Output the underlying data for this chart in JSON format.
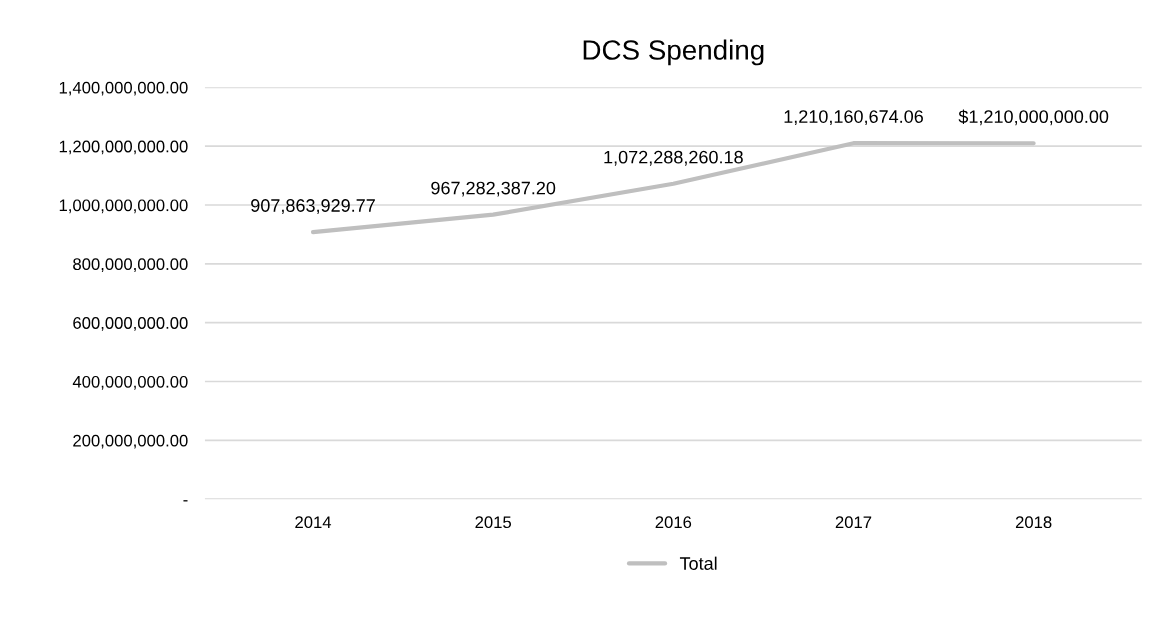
{
  "chart_data": {
    "type": "line",
    "title": "DCS Spending",
    "categories": [
      "2014",
      "2015",
      "2016",
      "2017",
      "2018"
    ],
    "series": [
      {
        "name": "Total",
        "color": "#bfbfbf",
        "values": [
          907863929.77,
          967282387.2,
          1072288260.18,
          1210160674.06,
          1210000000.0
        ],
        "value_labels": [
          "907,863,929.77",
          "967,282,387.20",
          "1,072,288,260.18",
          "1,210,160,674.06",
          "$1,210,000,000.00"
        ]
      }
    ],
    "ylim": [
      0,
      1400000000
    ],
    "yticks": [
      {
        "value": 0,
        "label": "-"
      },
      {
        "value": 200000000,
        "label": "200,000,000.00"
      },
      {
        "value": 400000000,
        "label": "400,000,000.00"
      },
      {
        "value": 600000000,
        "label": "600,000,000.00"
      },
      {
        "value": 800000000,
        "label": "800,000,000.00"
      },
      {
        "value": 1000000000,
        "label": "1,000,000,000.00"
      },
      {
        "value": 1200000000,
        "label": "1,200,000,000.00"
      },
      {
        "value": 1400000000,
        "label": "1,400,000,000.00"
      }
    ],
    "grid": "y",
    "legend": "bottom",
    "marker": "none",
    "line_style": "solid"
  }
}
